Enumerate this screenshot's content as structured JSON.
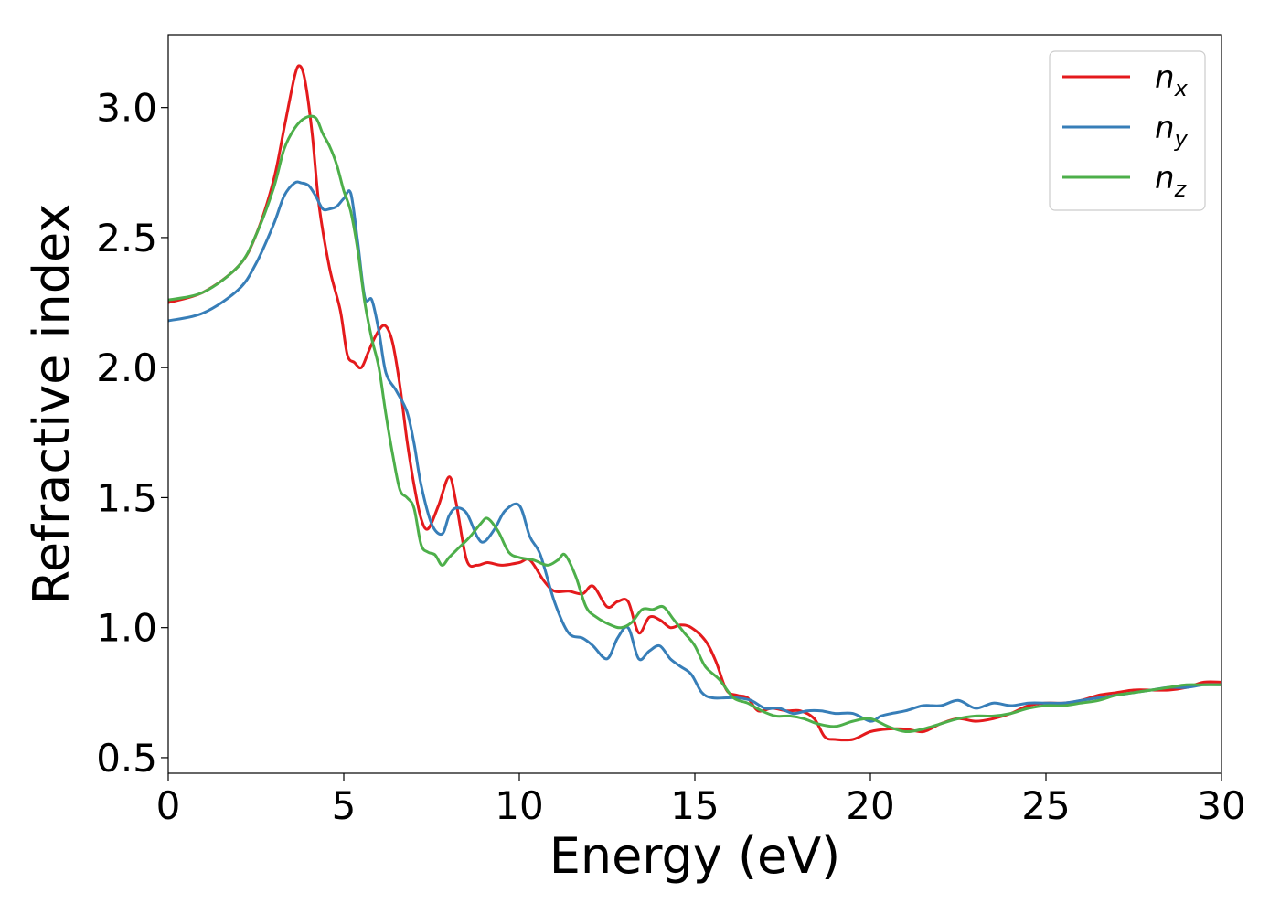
{
  "chart_data": {
    "type": "line",
    "title": "",
    "xlabel": "Energy (eV)",
    "ylabel": "Refractive index",
    "xlim": [
      0,
      30
    ],
    "ylim": [
      0.44,
      3.28
    ],
    "x_ticks": [
      0,
      5,
      10,
      15,
      20,
      25,
      30
    ],
    "y_ticks": [
      0.5,
      1.0,
      1.5,
      2.0,
      2.5,
      3.0
    ],
    "x_tick_labels": [
      "0",
      "5",
      "10",
      "15",
      "20",
      "25",
      "30"
    ],
    "y_tick_labels": [
      "0.5",
      "1.0",
      "1.5",
      "2.0",
      "2.5",
      "3.0"
    ],
    "grid": false,
    "legend_position": "top-right",
    "series": [
      {
        "name": "n",
        "subscript": "x",
        "color": "#e41a1c",
        "x": [
          0,
          1,
          2,
          2.5,
          3,
          3.3,
          3.6,
          3.75,
          3.9,
          4.1,
          4.3,
          4.6,
          4.9,
          5.1,
          5.3,
          5.5,
          5.7,
          5.9,
          6.1,
          6.25,
          6.4,
          6.6,
          6.8,
          7.0,
          7.2,
          7.4,
          7.7,
          8.0,
          8.2,
          8.5,
          8.8,
          9.1,
          9.5,
          10.0,
          10.3,
          10.7,
          11.0,
          11.4,
          11.8,
          12.1,
          12.5,
          12.8,
          13.1,
          13.4,
          13.7,
          14.0,
          14.3,
          14.6,
          14.9,
          15.3,
          15.6,
          15.9,
          16.2,
          16.5,
          16.8,
          17.2,
          17.6,
          18.0,
          18.4,
          18.7,
          19.0,
          19.5,
          20.0,
          20.5,
          21.0,
          21.5,
          22.0,
          22.5,
          23.0,
          23.5,
          24.0,
          24.5,
          25.0,
          25.5,
          26.0,
          26.5,
          27.0,
          27.5,
          28.0,
          28.5,
          29.0,
          29.5,
          30.0
        ],
        "values": [
          2.25,
          2.29,
          2.39,
          2.51,
          2.72,
          2.92,
          3.12,
          3.16,
          3.1,
          2.9,
          2.62,
          2.38,
          2.22,
          2.05,
          2.02,
          2.0,
          2.06,
          2.12,
          2.16,
          2.15,
          2.09,
          1.93,
          1.72,
          1.55,
          1.42,
          1.38,
          1.47,
          1.58,
          1.48,
          1.26,
          1.24,
          1.25,
          1.24,
          1.25,
          1.26,
          1.18,
          1.14,
          1.14,
          1.13,
          1.16,
          1.08,
          1.1,
          1.1,
          0.98,
          1.04,
          1.03,
          1.0,
          1.01,
          1.0,
          0.95,
          0.87,
          0.76,
          0.74,
          0.73,
          0.68,
          0.69,
          0.68,
          0.68,
          0.65,
          0.58,
          0.57,
          0.57,
          0.6,
          0.61,
          0.61,
          0.6,
          0.63,
          0.65,
          0.64,
          0.65,
          0.67,
          0.7,
          0.71,
          0.71,
          0.72,
          0.74,
          0.75,
          0.76,
          0.76,
          0.76,
          0.77,
          0.79,
          0.79
        ]
      },
      {
        "name": "n",
        "subscript": "y",
        "color": "#377eb8",
        "x": [
          0,
          1,
          2,
          2.5,
          3,
          3.3,
          3.6,
          3.8,
          4.0,
          4.2,
          4.4,
          4.6,
          4.8,
          5.0,
          5.2,
          5.4,
          5.6,
          5.8,
          6.0,
          6.2,
          6.5,
          6.8,
          7.0,
          7.2,
          7.5,
          7.8,
          8.0,
          8.2,
          8.5,
          8.8,
          9.0,
          9.3,
          9.6,
          10.0,
          10.3,
          10.6,
          11.0,
          11.4,
          11.8,
          12.1,
          12.5,
          12.8,
          13.1,
          13.4,
          13.7,
          14.0,
          14.3,
          14.6,
          14.9,
          15.2,
          15.5,
          15.9,
          16.2,
          16.6,
          17.0,
          17.4,
          17.8,
          18.2,
          18.6,
          19.0,
          19.5,
          20.0,
          20.3,
          20.6,
          21.0,
          21.5,
          22.0,
          22.5,
          23.0,
          23.5,
          24.0,
          24.5,
          25.0,
          25.5,
          26.0,
          26.5,
          27.0,
          27.5,
          28.0,
          28.5,
          29.0,
          29.5,
          30.0
        ],
        "values": [
          2.18,
          2.21,
          2.3,
          2.4,
          2.55,
          2.66,
          2.71,
          2.71,
          2.7,
          2.66,
          2.61,
          2.61,
          2.62,
          2.65,
          2.67,
          2.48,
          2.27,
          2.26,
          2.14,
          1.98,
          1.91,
          1.83,
          1.71,
          1.55,
          1.4,
          1.36,
          1.43,
          1.46,
          1.44,
          1.35,
          1.33,
          1.38,
          1.45,
          1.47,
          1.35,
          1.28,
          1.1,
          0.98,
          0.96,
          0.93,
          0.88,
          0.96,
          1.0,
          0.88,
          0.91,
          0.93,
          0.88,
          0.85,
          0.82,
          0.75,
          0.73,
          0.73,
          0.73,
          0.72,
          0.69,
          0.69,
          0.67,
          0.68,
          0.68,
          0.67,
          0.67,
          0.64,
          0.66,
          0.67,
          0.68,
          0.7,
          0.7,
          0.72,
          0.69,
          0.71,
          0.7,
          0.71,
          0.71,
          0.71,
          0.72,
          0.73,
          0.74,
          0.75,
          0.76,
          0.77,
          0.77,
          0.78,
          0.78
        ]
      },
      {
        "name": "n",
        "subscript": "z",
        "color": "#4daf4a",
        "x": [
          0,
          1,
          2,
          2.5,
          3,
          3.3,
          3.6,
          3.9,
          4.2,
          4.4,
          4.6,
          4.8,
          5.0,
          5.2,
          5.4,
          5.6,
          5.8,
          6.0,
          6.2,
          6.4,
          6.6,
          6.8,
          7.0,
          7.2,
          7.4,
          7.6,
          7.8,
          8.0,
          8.3,
          8.6,
          8.9,
          9.1,
          9.4,
          9.7,
          10.0,
          10.4,
          10.8,
          11.1,
          11.3,
          11.6,
          11.9,
          12.2,
          12.6,
          12.9,
          13.2,
          13.5,
          13.8,
          14.1,
          14.4,
          14.7,
          15.0,
          15.3,
          15.7,
          16.1,
          16.5,
          16.9,
          17.3,
          17.7,
          18.1,
          18.5,
          19.0,
          19.5,
          20.0,
          20.5,
          21.0,
          21.5,
          22.0,
          22.5,
          23.0,
          23.5,
          24.0,
          24.5,
          25.0,
          25.5,
          26.0,
          26.5,
          27.0,
          27.5,
          28.0,
          28.5,
          29.0,
          29.5,
          30.0
        ],
        "values": [
          2.26,
          2.29,
          2.39,
          2.51,
          2.69,
          2.84,
          2.92,
          2.96,
          2.96,
          2.9,
          2.85,
          2.78,
          2.68,
          2.6,
          2.45,
          2.25,
          2.11,
          2.0,
          1.82,
          1.66,
          1.53,
          1.5,
          1.46,
          1.32,
          1.29,
          1.28,
          1.24,
          1.27,
          1.31,
          1.35,
          1.4,
          1.42,
          1.37,
          1.29,
          1.27,
          1.26,
          1.24,
          1.26,
          1.28,
          1.2,
          1.08,
          1.04,
          1.01,
          1.0,
          1.02,
          1.07,
          1.07,
          1.08,
          1.03,
          0.98,
          0.93,
          0.85,
          0.8,
          0.73,
          0.71,
          0.68,
          0.66,
          0.66,
          0.65,
          0.63,
          0.62,
          0.64,
          0.65,
          0.62,
          0.6,
          0.61,
          0.63,
          0.65,
          0.66,
          0.66,
          0.67,
          0.69,
          0.7,
          0.7,
          0.71,
          0.72,
          0.74,
          0.75,
          0.76,
          0.77,
          0.78,
          0.78,
          0.78
        ]
      }
    ]
  }
}
